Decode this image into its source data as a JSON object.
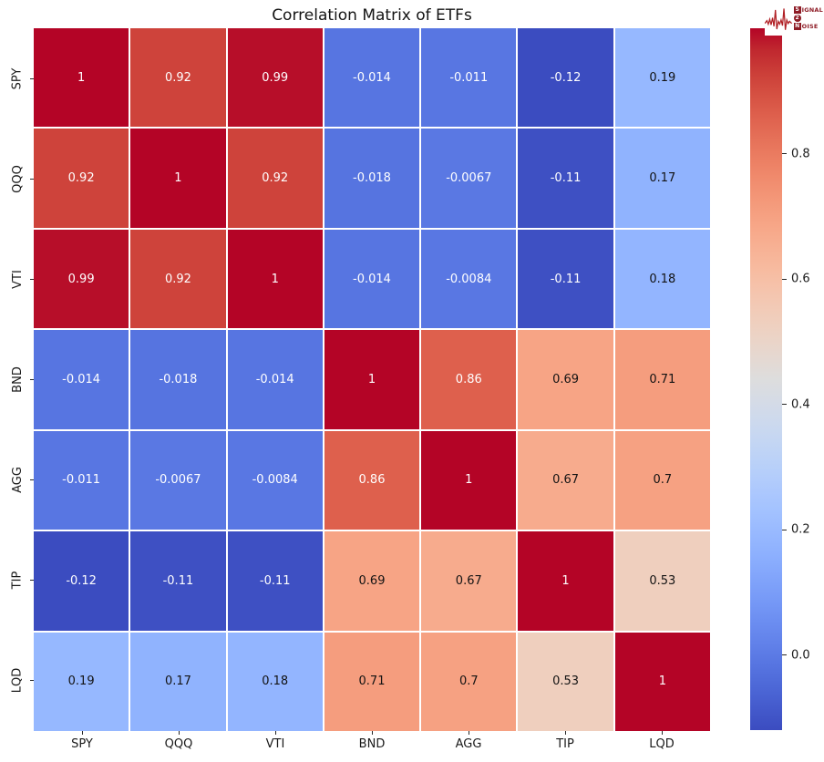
{
  "title": "Correlation Matrix of ETFs",
  "logo": {
    "s": "S",
    "ignal": "IGNAL",
    "two": "2",
    "n": "N",
    "oise": "OISE",
    "color": "#8e1c26"
  },
  "colors": {
    "max_red": "#b40426",
    "min_blue": "#3b4cc0",
    "midpoint": "#dddddd",
    "gridline": "#ffffff",
    "background": "#ffffff"
  },
  "chart_data": {
    "type": "heatmap",
    "title": "Correlation Matrix of ETFs",
    "colormap": "coolwarm",
    "vmin": -0.12,
    "vmax": 1.0,
    "grid": false,
    "legend_position": "right-colorbar",
    "categories": [
      "SPY",
      "QQQ",
      "VTI",
      "BND",
      "AGG",
      "TIP",
      "LQD"
    ],
    "matrix": [
      [
        1,
        0.92,
        0.99,
        -0.014,
        -0.011,
        -0.12,
        0.19
      ],
      [
        0.92,
        1,
        0.92,
        -0.018,
        -0.0067,
        -0.11,
        0.17
      ],
      [
        0.99,
        0.92,
        1,
        -0.014,
        -0.0084,
        -0.11,
        0.18
      ],
      [
        -0.014,
        -0.018,
        -0.014,
        1,
        0.86,
        0.69,
        0.71
      ],
      [
        -0.011,
        -0.0067,
        -0.0084,
        0.86,
        1,
        0.67,
        0.7
      ],
      [
        -0.12,
        -0.11,
        -0.11,
        0.69,
        0.67,
        1,
        0.53
      ],
      [
        0.19,
        0.17,
        0.18,
        0.71,
        0.7,
        0.53,
        1
      ]
    ],
    "cell_labels": [
      [
        "1",
        "0.92",
        "0.99",
        "-0.014",
        "-0.011",
        "-0.12",
        "0.19"
      ],
      [
        "0.92",
        "1",
        "0.92",
        "-0.018",
        "-0.0067",
        "-0.11",
        "0.17"
      ],
      [
        "0.99",
        "0.92",
        "1",
        "-0.014",
        "-0.0084",
        "-0.11",
        "0.18"
      ],
      [
        "-0.014",
        "-0.018",
        "-0.014",
        "1",
        "0.86",
        "0.69",
        "0.71"
      ],
      [
        "-0.011",
        "-0.0067",
        "-0.0084",
        "0.86",
        "1",
        "0.67",
        "0.7"
      ],
      [
        "-0.12",
        "-0.11",
        "-0.11",
        "0.69",
        "0.67",
        "1",
        "0.53"
      ],
      [
        "0.19",
        "0.17",
        "0.18",
        "0.71",
        "0.7",
        "0.53",
        "1"
      ]
    ],
    "colorbar_ticks": [
      {
        "value": 1.0,
        "label": "1.0"
      },
      {
        "value": 0.8,
        "label": "0.8"
      },
      {
        "value": 0.6,
        "label": "0.6"
      },
      {
        "value": 0.4,
        "label": "0.4"
      },
      {
        "value": 0.2,
        "label": "0.2"
      },
      {
        "value": 0.0,
        "label": "0.0"
      }
    ]
  }
}
